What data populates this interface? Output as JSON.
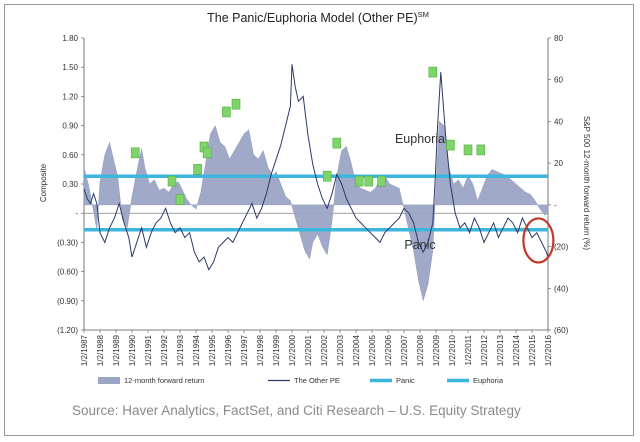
{
  "chart_data": {
    "type": "line",
    "title": "The Panic/Euphoria Model (Other PE)",
    "title_sup": "SM",
    "ylabel_left": "Composite",
    "ylabel_right": "S&P 500 12-month forward return (%)",
    "y_left_ticks": [
      "1.80",
      "1.50",
      "1.20",
      "0.90",
      "0.60",
      "0.30",
      "-",
      "(0.30)",
      "(0.60)",
      "(0.90)",
      "(1.20)"
    ],
    "y_left_values": [
      1.8,
      1.5,
      1.2,
      0.9,
      0.6,
      0.3,
      0,
      -0.3,
      -0.6,
      -0.9,
      -1.2
    ],
    "y_right_ticks": [
      "80",
      "60",
      "40",
      "20",
      "-",
      "(20)",
      "(40)",
      "(60)"
    ],
    "y_right_values": [
      80,
      60,
      40,
      20,
      0,
      -20,
      -40,
      -60
    ],
    "ylim_left": [
      -1.2,
      1.8
    ],
    "ylim_right": [
      -60,
      80
    ],
    "x_ticks": [
      "1/2/1987",
      "1/2/1988",
      "1/2/1989",
      "1/2/1990",
      "1/2/1991",
      "1/2/1992",
      "1/2/1993",
      "1/2/1994",
      "1/2/1995",
      "1/2/1996",
      "1/2/1997",
      "1/2/1998",
      "1/2/1999",
      "1/2/2000",
      "1/2/2001",
      "1/2/2002",
      "1/2/2003",
      "1/2/2004",
      "1/2/2005",
      "1/2/2006",
      "1/2/2007",
      "1/2/2008",
      "1/2/2009",
      "1/2/2010",
      "1/2/2011",
      "1/2/2012",
      "1/2/2013",
      "1/2/2014",
      "1/2/2015",
      "1/2/2016"
    ],
    "xlim": [
      1987.0,
      2016.0
    ],
    "thresholds": [
      {
        "name": "Euphoria",
        "value": 0.38,
        "color": "#3cb6dc"
      },
      {
        "name": "Panic",
        "value": -0.17,
        "color": "#3cb6dc"
      }
    ],
    "annotations": [
      {
        "text": "Euphoria",
        "x": 2008.0,
        "y": 0.72
      },
      {
        "text": "Panic",
        "x": 2008.0,
        "y": -0.37
      }
    ],
    "series": [
      {
        "name": "12-month forward return",
        "kind": "area",
        "axis": "right",
        "color": "#9ba5c6",
        "x": [
          1987.0,
          1987.3,
          1987.6,
          1987.8,
          1988.0,
          1988.3,
          1988.6,
          1988.9,
          1989.1,
          1989.4,
          1989.7,
          1990.0,
          1990.3,
          1990.6,
          1990.8,
          1991.1,
          1991.4,
          1991.7,
          1992.0,
          1992.3,
          1992.6,
          1992.9,
          1993.1,
          1993.4,
          1993.7,
          1994.0,
          1994.3,
          1994.6,
          1994.9,
          1995.2,
          1995.5,
          1995.8,
          1996.1,
          1996.4,
          1996.7,
          1997.0,
          1997.3,
          1997.6,
          1997.9,
          1998.2,
          1998.5,
          1998.8,
          1999.0,
          1999.3,
          1999.6,
          1999.9,
          2000.2,
          2000.5,
          2000.8,
          2001.1,
          2001.3,
          2001.6,
          2001.9,
          2002.2,
          2002.5,
          2002.8,
          2003.1,
          2003.4,
          2003.7,
          2004.0,
          2004.3,
          2004.6,
          2004.9,
          2005.2,
          2005.5,
          2005.8,
          2006.1,
          2006.4,
          2006.7,
          2007.0,
          2007.3,
          2007.6,
          2007.9,
          2008.2,
          2008.5,
          2008.8,
          2009.0,
          2009.2,
          2009.5,
          2009.8,
          2010.1,
          2010.4,
          2010.7,
          2011.0,
          2011.3,
          2011.6,
          2011.9,
          2012.2,
          2012.5,
          2012.8,
          2013.1,
          2013.4,
          2013.7,
          2014.0,
          2014.3,
          2014.6,
          2014.9,
          2015.2,
          2015.5,
          2015.8,
          2016.0
        ],
        "values": [
          18,
          9,
          -3,
          -12,
          11,
          24,
          30,
          20,
          14,
          -7,
          -11,
          4,
          16,
          27,
          18,
          10,
          12,
          7,
          8,
          6,
          10,
          11,
          8,
          3,
          0,
          -2,
          6,
          20,
          34,
          38,
          30,
          28,
          22,
          26,
          30,
          34,
          36,
          24,
          22,
          26,
          18,
          14,
          16,
          10,
          4,
          2,
          -6,
          -14,
          -22,
          -26,
          -18,
          -14,
          -20,
          -24,
          -8,
          14,
          26,
          28,
          20,
          10,
          8,
          7,
          6,
          8,
          12,
          14,
          10,
          9,
          8,
          -2,
          -12,
          -22,
          -36,
          -46,
          -38,
          -22,
          10,
          40,
          38,
          18,
          10,
          12,
          8,
          14,
          10,
          2,
          8,
          14,
          17,
          16,
          15,
          14,
          12,
          10,
          8,
          6,
          5,
          2,
          -2,
          -5,
          -4
        ]
      },
      {
        "name": "The Other PE",
        "kind": "line",
        "axis": "left",
        "color": "#2b3a67",
        "x": [
          1987.0,
          1987.2,
          1987.4,
          1987.6,
          1987.8,
          1988.0,
          1988.3,
          1988.6,
          1988.9,
          1989.2,
          1989.5,
          1989.8,
          1990.0,
          1990.3,
          1990.6,
          1990.9,
          1991.2,
          1991.5,
          1991.8,
          1992.1,
          1992.4,
          1992.7,
          1993.0,
          1993.3,
          1993.6,
          1993.9,
          1994.2,
          1994.5,
          1994.8,
          1995.1,
          1995.4,
          1995.7,
          1996.0,
          1996.3,
          1996.6,
          1996.9,
          1997.2,
          1997.5,
          1997.8,
          1998.1,
          1998.4,
          1998.7,
          1999.0,
          1999.3,
          1999.6,
          1999.9,
          2000.0,
          2000.2,
          2000.4,
          2000.7,
          2001.0,
          2001.3,
          2001.6,
          2001.9,
          2002.2,
          2002.5,
          2002.8,
          2003.1,
          2003.4,
          2003.7,
          2004.0,
          2004.3,
          2004.6,
          2004.9,
          2005.2,
          2005.5,
          2005.8,
          2006.1,
          2006.4,
          2006.7,
          2007.0,
          2007.3,
          2007.6,
          2007.9,
          2008.2,
          2008.5,
          2008.8,
          2008.95,
          2009.1,
          2009.3,
          2009.6,
          2009.9,
          2010.2,
          2010.5,
          2010.8,
          2011.1,
          2011.4,
          2011.7,
          2012.0,
          2012.3,
          2012.6,
          2012.9,
          2013.2,
          2013.5,
          2013.8,
          2014.1,
          2014.4,
          2014.7,
          2015.0,
          2015.3,
          2015.6,
          2015.9,
          2016.0
        ],
        "values": [
          0.25,
          0.15,
          0.1,
          0.2,
          0.1,
          -0.2,
          -0.3,
          -0.15,
          -0.05,
          0.1,
          -0.1,
          -0.25,
          -0.45,
          -0.3,
          -0.15,
          -0.35,
          -0.2,
          -0.1,
          -0.05,
          0.05,
          -0.1,
          -0.2,
          -0.15,
          -0.25,
          -0.2,
          -0.4,
          -0.5,
          -0.45,
          -0.58,
          -0.5,
          -0.35,
          -0.3,
          -0.25,
          -0.3,
          -0.2,
          -0.1,
          0.0,
          0.1,
          -0.05,
          0.05,
          0.2,
          0.4,
          0.55,
          0.7,
          0.9,
          1.1,
          1.53,
          1.3,
          1.15,
          1.2,
          0.8,
          0.5,
          0.3,
          0.15,
          0.05,
          0.2,
          0.4,
          0.3,
          0.15,
          0.05,
          -0.05,
          -0.1,
          -0.15,
          -0.2,
          -0.25,
          -0.3,
          -0.2,
          -0.15,
          -0.1,
          -0.05,
          0.05,
          0.0,
          -0.1,
          -0.3,
          -0.4,
          -0.3,
          -0.1,
          0.35,
          0.9,
          1.45,
          0.8,
          0.3,
          0.0,
          -0.15,
          -0.1,
          -0.2,
          -0.05,
          -0.15,
          -0.3,
          -0.2,
          -0.1,
          -0.25,
          -0.15,
          -0.05,
          -0.1,
          -0.2,
          -0.05,
          -0.15,
          -0.25,
          -0.2,
          -0.3,
          -0.4,
          -0.45
        ]
      }
    ],
    "markers": [
      {
        "x": 1990.2,
        "y": 0.62,
        "color": "#7fd36b"
      },
      {
        "x": 1992.5,
        "y": 0.33,
        "color": "#7fd36b"
      },
      {
        "x": 1993.0,
        "y": 0.14,
        "color": "#7fd36b"
      },
      {
        "x": 1994.1,
        "y": 0.45,
        "color": "#7fd36b"
      },
      {
        "x": 1994.5,
        "y": 0.68,
        "color": "#7fd36b"
      },
      {
        "x": 1994.7,
        "y": 0.62,
        "color": "#7fd36b"
      },
      {
        "x": 1995.9,
        "y": 1.04,
        "color": "#7fd36b"
      },
      {
        "x": 1996.5,
        "y": 1.12,
        "color": "#7fd36b"
      },
      {
        "x": 2002.2,
        "y": 0.38,
        "color": "#7fd36b"
      },
      {
        "x": 2002.8,
        "y": 0.72,
        "color": "#7fd36b"
      },
      {
        "x": 2004.2,
        "y": 0.33,
        "color": "#7fd36b"
      },
      {
        "x": 2004.8,
        "y": 0.33,
        "color": "#7fd36b"
      },
      {
        "x": 2005.6,
        "y": 0.33,
        "color": "#7fd36b"
      },
      {
        "x": 2008.8,
        "y": 1.45,
        "color": "#7fd36b"
      },
      {
        "x": 2009.9,
        "y": 0.7,
        "color": "#7fd36b"
      },
      {
        "x": 2011.0,
        "y": 0.65,
        "color": "#7fd36b"
      },
      {
        "x": 2011.8,
        "y": 0.65,
        "color": "#7fd36b"
      }
    ],
    "highlight_circle": {
      "x": 2015.4,
      "y": -0.28,
      "color": "#c0392b"
    },
    "legend": [
      {
        "label": "12-month forward return",
        "style": "area",
        "color": "#9ba5c6"
      },
      {
        "label": "The Other PE",
        "style": "line",
        "color": "#2b3a67"
      },
      {
        "label": "Panic",
        "style": "line",
        "color": "#3cb6dc"
      },
      {
        "label": "Euphoria",
        "style": "line",
        "color": "#3cb6dc"
      }
    ],
    "legend_position": "bottom",
    "grid": false
  },
  "source": "Source: Haver Analytics, FactSet, and Citi Research – U.S. Equity Strategy"
}
